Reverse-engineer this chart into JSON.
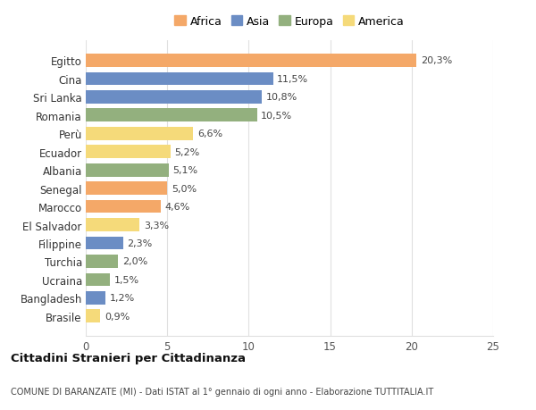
{
  "countries": [
    "Brasile",
    "Bangladesh",
    "Ucraina",
    "Turchia",
    "Filippine",
    "El Salvador",
    "Marocco",
    "Senegal",
    "Albania",
    "Ecuador",
    "Perù",
    "Romania",
    "Sri Lanka",
    "Cina",
    "Egitto"
  ],
  "values": [
    0.9,
    1.2,
    1.5,
    2.0,
    2.3,
    3.3,
    4.6,
    5.0,
    5.1,
    5.2,
    6.6,
    10.5,
    10.8,
    11.5,
    20.3
  ],
  "labels": [
    "0,9%",
    "1,2%",
    "1,5%",
    "2,0%",
    "2,3%",
    "3,3%",
    "4,6%",
    "5,0%",
    "5,1%",
    "5,2%",
    "6,6%",
    "10,5%",
    "10,8%",
    "11,5%",
    "20,3%"
  ],
  "continents": [
    "America",
    "Asia",
    "Europa",
    "Europa",
    "Asia",
    "America",
    "Africa",
    "Africa",
    "Europa",
    "America",
    "America",
    "Europa",
    "Asia",
    "Asia",
    "Africa"
  ],
  "colors": {
    "Africa": "#F4A868",
    "Asia": "#6B8DC4",
    "Europa": "#93B07E",
    "America": "#F5DA7A"
  },
  "legend_order": [
    "Africa",
    "Asia",
    "Europa",
    "America"
  ],
  "legend_colors": [
    "#F4A868",
    "#6B8DC4",
    "#93B07E",
    "#F5DA7A"
  ],
  "xlim": [
    0,
    25
  ],
  "xticks": [
    0,
    5,
    10,
    15,
    20,
    25
  ],
  "title": "Cittadini Stranieri per Cittadinanza",
  "subtitle": "COMUNE DI BARANZATE (MI) - Dati ISTAT al 1° gennaio di ogni anno - Elaborazione TUTTITALIA.IT",
  "bg_color": "#FFFFFF",
  "grid_color": "#E0E0E0",
  "bar_height": 0.72,
  "label_fontsize": 8,
  "tick_fontsize": 8.5
}
